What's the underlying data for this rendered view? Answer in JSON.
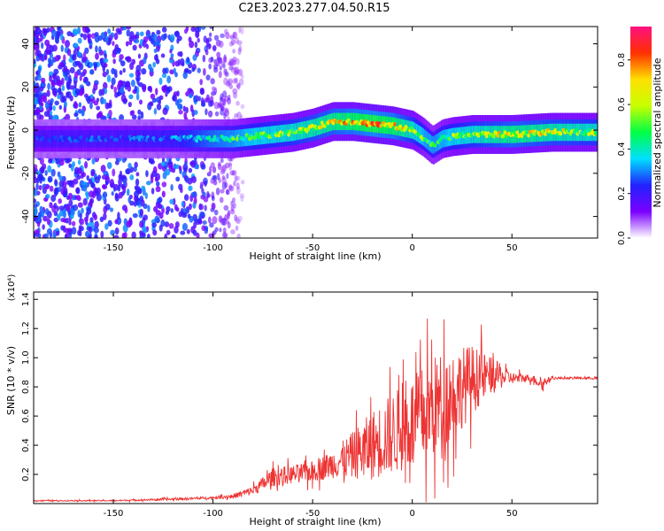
{
  "chart_data": [
    {
      "type": "heatmap",
      "title": "C2E3.2023.277.04.50.R15",
      "xlabel": "Height of straight line (km)",
      "ylabel": "Frequency (Hz)",
      "xlim": [
        -190,
        93
      ],
      "ylim": [
        -50,
        48
      ],
      "xticks": [
        -150,
        -100,
        -50,
        0,
        50
      ],
      "yticks": [
        -40,
        -20,
        0,
        20,
        40
      ],
      "colorbar": {
        "label": "Normalized spectral amplitude",
        "range": [
          0,
          0.95
        ],
        "ticks": [
          0.0,
          0.2,
          0.4,
          0.6,
          0.8
        ],
        "colors": [
          "#ffffff",
          "#7b00ff",
          "#2222ff",
          "#00e0ff",
          "#00ff44",
          "#c8ff00",
          "#ffe000",
          "#ff3000",
          "#ff1080"
        ]
      },
      "signal_track": {
        "x": [
          -190,
          -150,
          -120,
          -100,
          -90,
          -80,
          -60,
          -50,
          -40,
          -30,
          -20,
          -10,
          0,
          5,
          10,
          15,
          20,
          30,
          50,
          70,
          93
        ],
        "frequency": [
          -4,
          -4,
          -4,
          -4,
          -4,
          -3,
          -1,
          1,
          4,
          4,
          3,
          2,
          0,
          -3,
          -7,
          -4,
          -3,
          -2,
          -2,
          -1,
          -1
        ],
        "peak_amplitude": [
          0.3,
          0.3,
          0.35,
          0.5,
          0.55,
          0.65,
          0.7,
          0.75,
          0.8,
          0.85,
          0.9,
          0.85,
          0.7,
          0.6,
          0.55,
          0.6,
          0.65,
          0.7,
          0.8,
          0.75,
          0.7
        ]
      },
      "noise_region": {
        "x": [
          -190,
          -85
        ],
        "amplitude": 0.3
      }
    },
    {
      "type": "line",
      "xlabel": "Height of straight line (km)",
      "ylabel": "SNR (10 * v/v)",
      "y_multiplier": "(x10⁴)",
      "xlim": [
        -190,
        93
      ],
      "ylim": [
        0,
        1.45
      ],
      "xticks": [
        -150,
        -100,
        -50,
        0,
        50
      ],
      "yticks": [
        0.2,
        0.4,
        0.6,
        0.8,
        1.0,
        1.2,
        1.4
      ],
      "series": [
        {
          "color": "#ee3333",
          "x": [
            -190,
            -150,
            -120,
            -100,
            -90,
            -80,
            -70,
            -60,
            -50,
            -40,
            -30,
            -20,
            -10,
            0,
            10,
            20,
            30,
            40,
            50,
            60,
            65,
            70,
            80,
            93
          ],
          "y": [
            0.02,
            0.02,
            0.03,
            0.04,
            0.05,
            0.09,
            0.18,
            0.2,
            0.22,
            0.27,
            0.33,
            0.4,
            0.48,
            0.55,
            0.65,
            0.75,
            0.85,
            0.88,
            0.86,
            0.86,
            0.82,
            0.86,
            0.86,
            0.86
          ],
          "spread": [
            0.005,
            0.005,
            0.01,
            0.01,
            0.02,
            0.04,
            0.08,
            0.08,
            0.09,
            0.12,
            0.2,
            0.3,
            0.35,
            0.4,
            0.45,
            0.4,
            0.3,
            0.15,
            0.05,
            0.03,
            0.05,
            0.01,
            0.01,
            0.01
          ]
        }
      ]
    }
  ]
}
